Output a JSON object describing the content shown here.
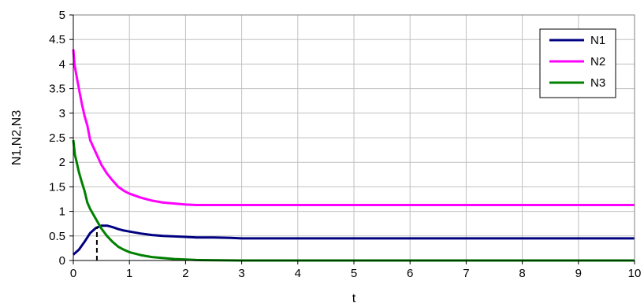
{
  "chart_data": {
    "type": "line",
    "xlabel": "t",
    "ylabel": "N1,N2,N3",
    "xlim": [
      0,
      10
    ],
    "ylim": [
      0,
      5
    ],
    "x_ticks": [
      "0",
      "1",
      "2",
      "3",
      "4",
      "5",
      "6",
      "7",
      "8",
      "9",
      "10"
    ],
    "y_ticks": [
      "0",
      "0.5",
      "1",
      "1.5",
      "2",
      "2.5",
      "3",
      "3.5",
      "4",
      "4.5",
      "5"
    ],
    "grid": true,
    "legend_position": "top-right",
    "series": [
      {
        "name": "N1",
        "color": "#000080",
        "points": [
          [
            0,
            0.12
          ],
          [
            0.1,
            0.22
          ],
          [
            0.2,
            0.38
          ],
          [
            0.3,
            0.56
          ],
          [
            0.4,
            0.66
          ],
          [
            0.5,
            0.71
          ],
          [
            0.6,
            0.71
          ],
          [
            0.7,
            0.68
          ],
          [
            0.8,
            0.64
          ],
          [
            0.9,
            0.61
          ],
          [
            1.0,
            0.59
          ],
          [
            1.2,
            0.55
          ],
          [
            1.4,
            0.52
          ],
          [
            1.6,
            0.5
          ],
          [
            1.8,
            0.49
          ],
          [
            2.0,
            0.48
          ],
          [
            2.2,
            0.47
          ],
          [
            2.5,
            0.47
          ],
          [
            2.8,
            0.46
          ],
          [
            3.0,
            0.45
          ],
          [
            4.0,
            0.45
          ],
          [
            5.0,
            0.45
          ],
          [
            6.0,
            0.45
          ],
          [
            7.0,
            0.45
          ],
          [
            8.0,
            0.45
          ],
          [
            9.0,
            0.45
          ],
          [
            10.0,
            0.45
          ]
        ]
      },
      {
        "name": "N2",
        "color": "#ff00ff",
        "points": [
          [
            0,
            4.3
          ],
          [
            0.02,
            4.0
          ],
          [
            0.05,
            3.8
          ],
          [
            0.1,
            3.5
          ],
          [
            0.15,
            3.2
          ],
          [
            0.2,
            2.95
          ],
          [
            0.25,
            2.75
          ],
          [
            0.3,
            2.45
          ],
          [
            0.4,
            2.2
          ],
          [
            0.5,
            1.95
          ],
          [
            0.6,
            1.77
          ],
          [
            0.7,
            1.63
          ],
          [
            0.8,
            1.5
          ],
          [
            0.9,
            1.42
          ],
          [
            1.0,
            1.36
          ],
          [
            1.2,
            1.28
          ],
          [
            1.4,
            1.22
          ],
          [
            1.6,
            1.18
          ],
          [
            1.8,
            1.16
          ],
          [
            2.0,
            1.14
          ],
          [
            2.2,
            1.13
          ],
          [
            3.0,
            1.13
          ],
          [
            4.0,
            1.13
          ],
          [
            5.0,
            1.13
          ],
          [
            6.0,
            1.13
          ],
          [
            7.0,
            1.13
          ],
          [
            8.0,
            1.13
          ],
          [
            9.0,
            1.13
          ],
          [
            10.0,
            1.13
          ]
        ]
      },
      {
        "name": "N3",
        "color": "#008000",
        "points": [
          [
            0,
            2.45
          ],
          [
            0.03,
            2.15
          ],
          [
            0.06,
            2.0
          ],
          [
            0.1,
            1.8
          ],
          [
            0.15,
            1.6
          ],
          [
            0.2,
            1.42
          ],
          [
            0.25,
            1.18
          ],
          [
            0.3,
            1.05
          ],
          [
            0.4,
            0.85
          ],
          [
            0.5,
            0.65
          ],
          [
            0.6,
            0.5
          ],
          [
            0.7,
            0.38
          ],
          [
            0.8,
            0.28
          ],
          [
            0.9,
            0.22
          ],
          [
            1.0,
            0.17
          ],
          [
            1.2,
            0.11
          ],
          [
            1.4,
            0.07
          ],
          [
            1.6,
            0.05
          ],
          [
            1.8,
            0.03
          ],
          [
            2.0,
            0.02
          ],
          [
            2.2,
            0.01
          ],
          [
            3.0,
            0.0
          ],
          [
            4.0,
            0.0
          ],
          [
            5.0,
            0.0
          ],
          [
            6.0,
            0.0
          ],
          [
            7.0,
            0.0
          ],
          [
            8.0,
            0.0
          ],
          [
            9.0,
            0.0
          ],
          [
            10.0,
            0.0
          ]
        ]
      }
    ],
    "annotations": [
      {
        "type": "dashed-vertical-line",
        "x": 0.42,
        "y_from": 0,
        "y_to": 0.69,
        "color": "#000000"
      }
    ]
  }
}
